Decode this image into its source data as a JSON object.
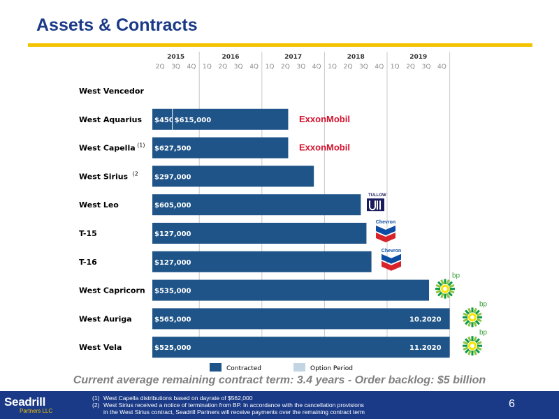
{
  "slide": {
    "title": "Assets & Contracts",
    "summary": "Current average remaining contract term: 3.4 years - Order backlog: $5 billion",
    "page_number": "6",
    "logo": {
      "name": "Seadrill",
      "sub": "Partners LLC"
    },
    "footnotes": [
      {
        "num": "(1)",
        "lines": [
          "West Capella distributions based on dayrate of $562,000"
        ]
      },
      {
        "num": "(2)",
        "lines": [
          "West Sirius received a notice of termination from BP.  In accordance with the cancellation provisions",
          "in the West Sirius contract, Seadrill Partners will receive payments over the remaining contract term"
        ]
      }
    ],
    "colors": {
      "title": "#1a3a87",
      "accent": "#f3c300",
      "contracted": "#1f5488",
      "option": "#c3d5e2",
      "footer": "#1a3a87"
    }
  },
  "chart_data": {
    "type": "bar",
    "orientation": "horizontal-timeline",
    "years": [
      "2015",
      "2016",
      "2017",
      "2018",
      "2019"
    ],
    "quarters": [
      "2Q",
      "3Q",
      "4Q",
      "1Q",
      "2Q",
      "3Q",
      "4Q",
      "1Q",
      "2Q",
      "3Q",
      "4Q",
      "1Q",
      "2Q",
      "3Q",
      "4Q",
      "1Q",
      "2Q",
      "3Q",
      "4Q"
    ],
    "x_start": 2015.25,
    "x_end": 2020.0,
    "legend": {
      "contracted": "Contracted",
      "option": "Option Period"
    },
    "rows": [
      {
        "name": "West Vencedor",
        "note": "",
        "segments": []
      },
      {
        "name": "West Aquarius",
        "note": "",
        "segments": [
          {
            "label": "$450,000",
            "start": 2015.25,
            "end": 2015.57
          },
          {
            "label": "$615,000",
            "start": 2015.57,
            "end": 2017.42
          }
        ],
        "client": "ExxonMobil"
      },
      {
        "name": "West Capella",
        "note": "(1)",
        "segments": [
          {
            "label": "$627,500",
            "start": 2015.25,
            "end": 2017.42
          }
        ],
        "client": "ExxonMobil"
      },
      {
        "name": "West Sirius",
        "note": "(2",
        "segments": [
          {
            "label": "$297,000",
            "start": 2015.25,
            "end": 2017.83
          }
        ]
      },
      {
        "name": "West Leo",
        "note": "",
        "segments": [
          {
            "label": "$605,000",
            "start": 2015.25,
            "end": 2018.58
          }
        ],
        "client": "Tullow"
      },
      {
        "name": "T-15",
        "note": "",
        "segments": [
          {
            "label": "$127,000",
            "start": 2015.25,
            "end": 2018.67
          }
        ],
        "client": "Chevron"
      },
      {
        "name": "T-16",
        "note": "",
        "segments": [
          {
            "label": "$127,000",
            "start": 2015.25,
            "end": 2018.75
          }
        ],
        "client": "Chevron"
      },
      {
        "name": "West Capricorn",
        "note": "",
        "segments": [
          {
            "label": "$535,000",
            "start": 2015.25,
            "end": 2019.67
          }
        ],
        "client": "bp"
      },
      {
        "name": "West Auriga",
        "note": "",
        "segments": [
          {
            "label": "$565,000",
            "start": 2015.25,
            "end": 2020.0,
            "end_label": "10.2020"
          }
        ],
        "client": "bp"
      },
      {
        "name": "West Vela",
        "note": "",
        "segments": [
          {
            "label": "$525,000",
            "start": 2015.25,
            "end": 2020.0,
            "end_label": "11.2020"
          }
        ],
        "client": "bp"
      }
    ],
    "client_logos": {
      "exxon": "ExxonMobil",
      "chevron": "Chevron",
      "tullow": "TULLOW",
      "bp": "bp"
    }
  }
}
